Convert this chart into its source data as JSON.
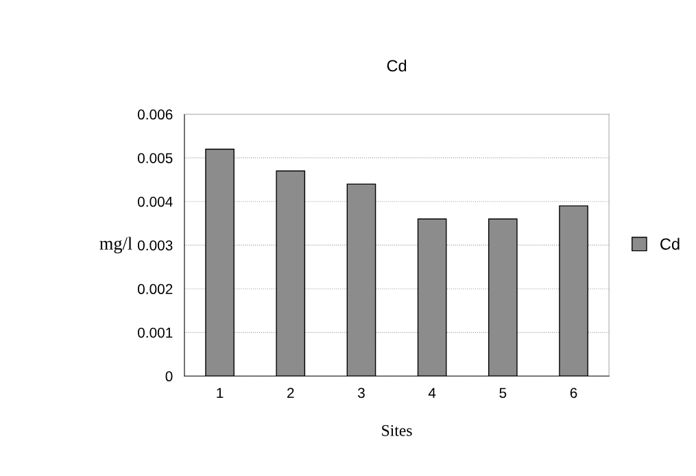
{
  "chart_data": {
    "type": "bar",
    "title": "Cd",
    "xlabel": "Sites",
    "ylabel": "mg/l",
    "categories": [
      "1",
      "2",
      "3",
      "4",
      "5",
      "6"
    ],
    "series": [
      {
        "name": "Cd",
        "color": "#8c8c8c",
        "values": [
          0.0052,
          0.0047,
          0.0044,
          0.0036,
          0.0036,
          0.0039
        ]
      }
    ],
    "ylim": [
      0,
      0.006
    ],
    "yticks": [
      {
        "value": 0,
        "label": "0"
      },
      0.001,
      0.002,
      0.003,
      0.004,
      0.005,
      0.006
    ],
    "grid": "y",
    "legend": "right"
  }
}
